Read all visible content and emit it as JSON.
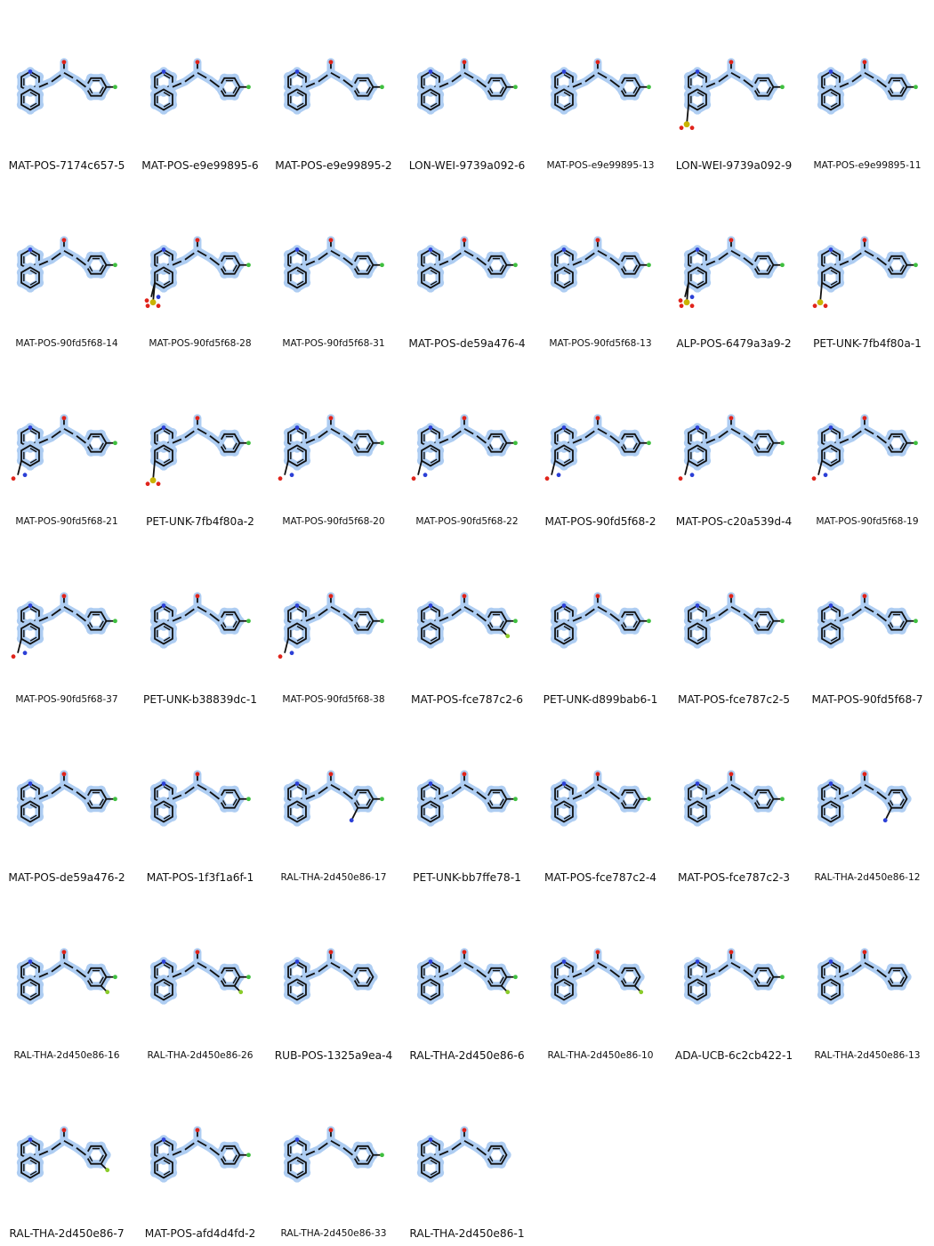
{
  "compounds": [
    {
      "id": "MAT-POS-7174c657-5",
      "style": "peptide"
    },
    {
      "id": "MAT-POS-e9e99895-6",
      "style": "cyclo-urea"
    },
    {
      "id": "MAT-POS-e9e99895-2",
      "style": "morph"
    },
    {
      "id": "LON-WEI-9739a092-6",
      "style": "furoyl-pip"
    },
    {
      "id": "MAT-POS-e9e99895-13",
      "style": "pyrrolidine"
    },
    {
      "id": "LON-WEI-9739a092-9",
      "style": "sulfonyl-pip"
    },
    {
      "id": "MAT-POS-e9e99895-11",
      "style": "methoxy-acyl"
    },
    {
      "id": "MAT-POS-90fd5f68-14",
      "style": "o-chain-pyrrolidine"
    },
    {
      "id": "MAT-POS-90fd5f68-28",
      "style": "sulfonamide"
    },
    {
      "id": "MAT-POS-90fd5f68-31",
      "style": "o-chain-amine"
    },
    {
      "id": "MAT-POS-de59a476-4",
      "style": "ether-chain"
    },
    {
      "id": "MAT-POS-90fd5f68-13",
      "style": "o-chain-amine-long"
    },
    {
      "id": "ALP-POS-6479a3a9-2",
      "style": "benzyl-sulfonamide"
    },
    {
      "id": "PET-UNK-7fb4f80a-1",
      "style": "mesylate"
    },
    {
      "id": "MAT-POS-90fd5f68-21",
      "style": "dimethylamide"
    },
    {
      "id": "PET-UNK-7fb4f80a-2",
      "style": "mesylate-2"
    },
    {
      "id": "MAT-POS-90fd5f68-20",
      "style": "methylamide"
    },
    {
      "id": "MAT-POS-90fd5f68-22",
      "style": "acetamide"
    },
    {
      "id": "MAT-POS-90fd5f68-2",
      "style": "methylamide-2"
    },
    {
      "id": "MAT-POS-c20a539d-4",
      "style": "tert-alcohol"
    },
    {
      "id": "MAT-POS-90fd5f68-19",
      "style": "amide"
    },
    {
      "id": "MAT-POS-90fd5f68-37",
      "style": "acid"
    },
    {
      "id": "PET-UNK-b38839dc-1",
      "style": "fluoro-methoxy"
    },
    {
      "id": "MAT-POS-90fd5f68-38",
      "style": "acid-2"
    },
    {
      "id": "MAT-POS-fce787c2-6",
      "style": "difluoro"
    },
    {
      "id": "PET-UNK-d899bab6-1",
      "style": "dimethylamino"
    },
    {
      "id": "MAT-POS-fce787c2-5",
      "style": "n-methyl"
    },
    {
      "id": "MAT-POS-90fd5f68-7",
      "style": "dimethylamino-2"
    },
    {
      "id": "MAT-POS-de59a476-2",
      "style": "methoxy"
    },
    {
      "id": "MAT-POS-1f3f1a6f-1",
      "style": "amino"
    },
    {
      "id": "RAL-THA-2d450e86-17",
      "style": "nitrile-cl"
    },
    {
      "id": "PET-UNK-bb7ffe78-1",
      "style": "ethyl-cl"
    },
    {
      "id": "MAT-POS-fce787c2-4",
      "style": "keto"
    },
    {
      "id": "MAT-POS-fce787c2-3",
      "style": "methyl"
    },
    {
      "id": "RAL-THA-2d450e86-12",
      "style": "nitrile"
    },
    {
      "id": "RAL-THA-2d450e86-16",
      "style": "difluoro-ring"
    },
    {
      "id": "RAL-THA-2d450e86-26",
      "style": "difluoro-ortho"
    },
    {
      "id": "RUB-POS-1325a9ea-4",
      "style": "methyl-iq"
    },
    {
      "id": "RAL-THA-2d450e86-6",
      "style": "cl-f"
    },
    {
      "id": "RAL-THA-2d450e86-10",
      "style": "f"
    },
    {
      "id": "ADA-UCB-6c2cb422-1",
      "style": "cl"
    },
    {
      "id": "RAL-THA-2d450e86-13",
      "style": "methyl-phenyl"
    },
    {
      "id": "RAL-THA-2d450e86-7",
      "style": "f-para"
    },
    {
      "id": "MAT-POS-afd4d4fd-2",
      "style": "pyridyl-cl"
    },
    {
      "id": "RAL-THA-2d450e86-33",
      "style": "pyridyl-cl-2"
    },
    {
      "id": "RAL-THA-2d450e86-1",
      "style": "phenyl"
    }
  ],
  "label_sizes": {
    "MAT-POS-7174c657-5": "big",
    "MAT-POS-e9e99895-6": "big",
    "MAT-POS-e9e99895-2": "big",
    "LON-WEI-9739a092-6": "big",
    "MAT-POS-e9e99895-13": "small",
    "LON-WEI-9739a092-9": "big",
    "MAT-POS-e9e99895-11": "small",
    "MAT-POS-90fd5f68-14": "small",
    "MAT-POS-90fd5f68-28": "small",
    "MAT-POS-90fd5f68-31": "small",
    "MAT-POS-de59a476-4": "big",
    "MAT-POS-90fd5f68-13": "small",
    "ALP-POS-6479a3a9-2": "big",
    "PET-UNK-7fb4f80a-1": "big",
    "MAT-POS-90fd5f68-21": "small",
    "PET-UNK-7fb4f80a-2": "big",
    "MAT-POS-90fd5f68-20": "small",
    "MAT-POS-90fd5f68-22": "small",
    "MAT-POS-90fd5f68-2": "big",
    "MAT-POS-c20a539d-4": "big",
    "MAT-POS-90fd5f68-19": "small",
    "MAT-POS-90fd5f68-37": "small",
    "PET-UNK-b38839dc-1": "big",
    "MAT-POS-90fd5f68-38": "small",
    "MAT-POS-fce787c2-6": "big",
    "PET-UNK-d899bab6-1": "big",
    "MAT-POS-fce787c2-5": "big",
    "MAT-POS-90fd5f68-7": "big",
    "MAT-POS-de59a476-2": "big",
    "MAT-POS-1f3f1a6f-1": "big",
    "RAL-THA-2d450e86-17": "small",
    "PET-UNK-bb7ffe78-1": "big",
    "MAT-POS-fce787c2-4": "big",
    "MAT-POS-fce787c2-3": "big",
    "RAL-THA-2d450e86-12": "small",
    "RAL-THA-2d450e86-16": "small",
    "RAL-THA-2d450e86-26": "small",
    "RUB-POS-1325a9ea-4": "big",
    "RAL-THA-2d450e86-6": "big",
    "RAL-THA-2d450e86-10": "small",
    "ADA-UCB-6c2cb422-1": "big",
    "RAL-THA-2d450e86-13": "small",
    "RAL-THA-2d450e86-7": "big",
    "MAT-POS-afd4d4fd-2": "big",
    "RAL-THA-2d450e86-33": "small",
    "RAL-THA-2d450e86-1": "big"
  },
  "colors": {
    "bond": "#111111",
    "highlight": "#aecdf2",
    "nitrogen": "#2b3fd6",
    "oxygen": "#e0241b",
    "chlorine": "#3fbf3f",
    "fluorine": "#8acb2a",
    "sulfur": "#c9b400"
  }
}
